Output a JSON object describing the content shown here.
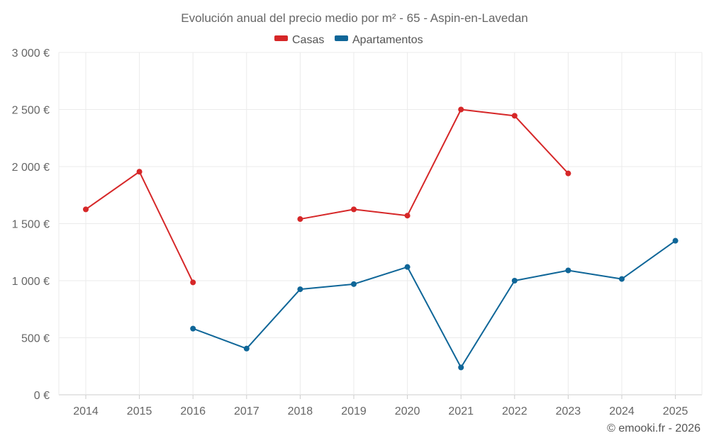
{
  "chart_data": {
    "type": "line",
    "title": "Evolución anual del precio medio por m² - 65 - Aspin-en-Lavedan",
    "categories": [
      "2014",
      "2015",
      "2016",
      "2017",
      "2018",
      "2019",
      "2020",
      "2021",
      "2022",
      "2023",
      "2024",
      "2025"
    ],
    "y_ticks": [
      0,
      500,
      1000,
      1500,
      2000,
      2500,
      3000
    ],
    "y_tick_labels": [
      "0 €",
      "500 €",
      "1 000 €",
      "1 500 €",
      "2 000 €",
      "2 500 €",
      "3 000 €"
    ],
    "ylim": [
      0,
      3000
    ],
    "xlabel": "",
    "ylabel": "",
    "grid": true,
    "legend_position": "top-center",
    "series": [
      {
        "name": "Casas",
        "color": "#d62728",
        "values": [
          1625,
          1955,
          985,
          null,
          1540,
          1625,
          1570,
          2500,
          2445,
          1940,
          null,
          null
        ]
      },
      {
        "name": "Apartamentos",
        "color": "#0f6698",
        "values": [
          null,
          null,
          580,
          405,
          925,
          970,
          1120,
          240,
          1000,
          1090,
          1015,
          1350
        ]
      }
    ]
  },
  "copyright": "© emooki.fr - 2026"
}
